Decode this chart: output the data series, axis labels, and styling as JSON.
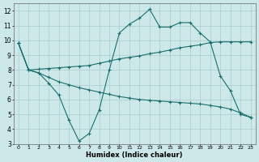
{
  "xlabel": "Humidex (Indice chaleur)",
  "background_color": "#cde8e8",
  "grid_color": "#aacccc",
  "line_color": "#1a6e6e",
  "xlim": [
    -0.5,
    23.5
  ],
  "ylim": [
    3,
    12.5
  ],
  "xticks": [
    0,
    1,
    2,
    3,
    4,
    5,
    6,
    7,
    8,
    9,
    10,
    11,
    12,
    13,
    14,
    15,
    16,
    17,
    18,
    19,
    20,
    21,
    22,
    23
  ],
  "yticks": [
    3,
    4,
    5,
    6,
    7,
    8,
    9,
    10,
    11,
    12
  ],
  "line1_x": [
    0,
    1,
    2,
    3,
    4,
    5,
    6,
    7,
    8,
    9,
    10,
    11,
    12,
    13,
    14,
    15,
    16,
    17,
    18,
    19,
    20,
    21,
    22,
    23
  ],
  "line1_y": [
    9.8,
    8.0,
    7.8,
    7.1,
    6.3,
    4.6,
    3.2,
    3.7,
    5.3,
    8.0,
    10.5,
    11.1,
    11.5,
    12.1,
    10.9,
    10.9,
    11.2,
    11.2,
    10.5,
    9.9,
    7.6,
    6.6,
    5.0,
    4.8
  ],
  "line2_x": [
    0,
    1,
    2,
    3,
    4,
    5,
    6,
    7,
    8,
    9,
    10,
    11,
    12,
    13,
    14,
    15,
    16,
    17,
    18,
    19,
    20,
    21,
    22,
    23
  ],
  "line2_y": [
    9.8,
    8.0,
    8.05,
    8.1,
    8.15,
    8.2,
    8.25,
    8.3,
    8.45,
    8.6,
    8.75,
    8.85,
    8.95,
    9.1,
    9.2,
    9.35,
    9.5,
    9.6,
    9.7,
    9.85,
    9.9,
    9.9,
    9.9,
    9.9
  ],
  "line3_x": [
    0,
    1,
    2,
    3,
    4,
    5,
    6,
    7,
    8,
    9,
    10,
    11,
    12,
    13,
    14,
    15,
    16,
    17,
    18,
    19,
    20,
    21,
    22,
    23
  ],
  "line3_y": [
    9.8,
    8.0,
    7.8,
    7.5,
    7.2,
    7.0,
    6.8,
    6.65,
    6.5,
    6.35,
    6.2,
    6.1,
    6.0,
    5.95,
    5.9,
    5.85,
    5.8,
    5.75,
    5.7,
    5.6,
    5.5,
    5.35,
    5.1,
    4.8
  ]
}
